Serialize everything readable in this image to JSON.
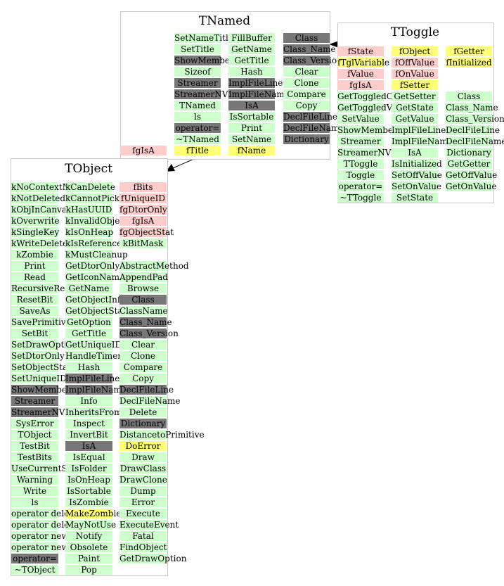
{
  "boxes": {
    "tnamed": {
      "title": "TNamed",
      "columns": [
        [
          {
            "t": "SetNameTitle",
            "c": "m"
          },
          {
            "t": "SetTitle",
            "c": "m"
          },
          {
            "t": "ShowMembers",
            "c": "g"
          },
          {
            "t": "Sizeof",
            "c": "m"
          },
          {
            "t": "Streamer",
            "c": "g"
          },
          {
            "t": "StreamerNVirtual",
            "c": "g"
          },
          {
            "t": "TNamed",
            "c": "m"
          },
          {
            "t": "ls",
            "c": "m"
          },
          {
            "t": "operator=",
            "c": "g"
          },
          {
            "t": "~TNamed",
            "c": "m"
          },
          {
            "t": "fTitle",
            "c": "y"
          }
        ],
        [
          {
            "t": "FillBuffer",
            "c": "m"
          },
          {
            "t": "GetName",
            "c": "m"
          },
          {
            "t": "GetTitle",
            "c": "m"
          },
          {
            "t": "Hash",
            "c": "m"
          },
          {
            "t": "ImplFileLine",
            "c": "g"
          },
          {
            "t": "ImplFileName",
            "c": "g"
          },
          {
            "t": "IsA",
            "c": "g"
          },
          {
            "t": "IsSortable",
            "c": "m"
          },
          {
            "t": "Print",
            "c": "m"
          },
          {
            "t": "SetName",
            "c": "m"
          },
          {
            "t": "fName",
            "c": "y"
          }
        ],
        [
          {
            "t": "Class",
            "c": "g"
          },
          {
            "t": "Class_Name",
            "c": "g"
          },
          {
            "t": "Class_Version",
            "c": "g"
          },
          {
            "t": "Clear",
            "c": "m"
          },
          {
            "t": "Clone",
            "c": "m"
          },
          {
            "t": "Compare",
            "c": "m"
          },
          {
            "t": "Copy",
            "c": "m"
          },
          {
            "t": "DeclFileLine",
            "c": "g"
          },
          {
            "t": "DeclFileName",
            "c": "g"
          },
          {
            "t": "Dictionary",
            "c": "g"
          }
        ]
      ],
      "extra": {
        "t": "fgIsA",
        "c": "d"
      }
    },
    "ttoggle": {
      "title": "TToggle",
      "columns": [
        [
          {
            "t": "fState",
            "c": "d"
          },
          {
            "t": "fTglVariable",
            "c": "y"
          },
          {
            "t": "fValue",
            "c": "d"
          },
          {
            "t": "fgIsA",
            "c": "d"
          },
          {
            "t": "GetToggledObject",
            "c": "m"
          },
          {
            "t": "GetToggledVariable",
            "c": "m"
          },
          {
            "t": "SetValue",
            "c": "m"
          },
          {
            "t": "ShowMembers",
            "c": "m"
          },
          {
            "t": "Streamer",
            "c": "m"
          },
          {
            "t": "StreamerNVirtual",
            "c": "m"
          },
          {
            "t": "TToggle",
            "c": "m"
          },
          {
            "t": "Toggle",
            "c": "m"
          },
          {
            "t": "operator=",
            "c": "m"
          },
          {
            "t": "~TToggle",
            "c": "m"
          }
        ],
        [
          {
            "t": "fObject",
            "c": "y"
          },
          {
            "t": "fOffValue",
            "c": "d"
          },
          {
            "t": "fOnValue",
            "c": "d"
          },
          {
            "t": "fSetter",
            "c": "y"
          },
          {
            "t": "GetSetter",
            "c": "m"
          },
          {
            "t": "GetState",
            "c": "m"
          },
          {
            "t": "GetValue",
            "c": "m"
          },
          {
            "t": "ImplFileLine",
            "c": "m"
          },
          {
            "t": "ImplFileName",
            "c": "m"
          },
          {
            "t": "IsA",
            "c": "m"
          },
          {
            "t": "IsInitialized",
            "c": "m"
          },
          {
            "t": "SetOffValue",
            "c": "m"
          },
          {
            "t": "SetOnValue",
            "c": "m"
          },
          {
            "t": "SetState",
            "c": "m"
          }
        ],
        [
          {
            "t": "fGetter",
            "c": "y"
          },
          {
            "t": "fInitialized",
            "c": "y"
          },
          {
            "t": "",
            "c": "w"
          },
          {
            "t": "",
            "c": "w"
          },
          {
            "t": "Class",
            "c": "m"
          },
          {
            "t": "Class_Name",
            "c": "m"
          },
          {
            "t": "Class_Version",
            "c": "m"
          },
          {
            "t": "DeclFileLine",
            "c": "m"
          },
          {
            "t": "DeclFileName",
            "c": "m"
          },
          {
            "t": "Dictionary",
            "c": "m"
          },
          {
            "t": "GetGetter",
            "c": "m"
          },
          {
            "t": "GetOffValue",
            "c": "m"
          },
          {
            "t": "GetOnValue",
            "c": "m"
          }
        ]
      ]
    },
    "tobject": {
      "title": "TObject",
      "columns": [
        [
          {
            "t": "kNoContextMenu",
            "c": "m"
          },
          {
            "t": "kNotDeleted",
            "c": "m"
          },
          {
            "t": "kObjInCanvas",
            "c": "m"
          },
          {
            "t": "kOverwrite",
            "c": "m"
          },
          {
            "t": "kSingleKey",
            "c": "m"
          },
          {
            "t": "kWriteDelete",
            "c": "m"
          },
          {
            "t": "kZombie",
            "c": "m"
          },
          {
            "t": "Print",
            "c": "m"
          },
          {
            "t": "Read",
            "c": "m"
          },
          {
            "t": "RecursiveRemove",
            "c": "m"
          },
          {
            "t": "ResetBit",
            "c": "m"
          },
          {
            "t": "SaveAs",
            "c": "m"
          },
          {
            "t": "SavePrimitive",
            "c": "m"
          },
          {
            "t": "SetBit",
            "c": "m"
          },
          {
            "t": "SetDrawOption",
            "c": "m"
          },
          {
            "t": "SetDtorOnly",
            "c": "m"
          },
          {
            "t": "SetObjectStat",
            "c": "m"
          },
          {
            "t": "SetUniqueID",
            "c": "m"
          },
          {
            "t": "ShowMembers",
            "c": "g"
          },
          {
            "t": "Streamer",
            "c": "g"
          },
          {
            "t": "StreamerNVirtual",
            "c": "g"
          },
          {
            "t": "SysError",
            "c": "m"
          },
          {
            "t": "TObject",
            "c": "m"
          },
          {
            "t": "TestBit",
            "c": "m"
          },
          {
            "t": "TestBits",
            "c": "m"
          },
          {
            "t": "UseCurrentStyle",
            "c": "m"
          },
          {
            "t": "Warning",
            "c": "m"
          },
          {
            "t": "Write",
            "c": "m"
          },
          {
            "t": "ls",
            "c": "m"
          },
          {
            "t": "operator delete",
            "c": "m"
          },
          {
            "t": "operator delete[]",
            "c": "m"
          },
          {
            "t": "operator new",
            "c": "m"
          },
          {
            "t": "operator new[]",
            "c": "m"
          },
          {
            "t": "operator=",
            "c": "g"
          },
          {
            "t": "~TObject",
            "c": "m"
          }
        ],
        [
          {
            "t": "kCanDelete",
            "c": "m"
          },
          {
            "t": "kCannotPick",
            "c": "m"
          },
          {
            "t": "kHasUUID",
            "c": "m"
          },
          {
            "t": "kInvalidObject",
            "c": "m"
          },
          {
            "t": "kIsOnHeap",
            "c": "m"
          },
          {
            "t": "kIsReferenced",
            "c": "m"
          },
          {
            "t": "kMustCleanup",
            "c": "m"
          },
          {
            "t": "GetDtorOnly",
            "c": "m"
          },
          {
            "t": "GetIconName",
            "c": "m"
          },
          {
            "t": "GetName",
            "c": "m"
          },
          {
            "t": "GetObjectInfo",
            "c": "m"
          },
          {
            "t": "GetObjectStat",
            "c": "m"
          },
          {
            "t": "GetOption",
            "c": "m"
          },
          {
            "t": "GetTitle",
            "c": "m"
          },
          {
            "t": "GetUniqueID",
            "c": "m"
          },
          {
            "t": "HandleTimer",
            "c": "m"
          },
          {
            "t": "Hash",
            "c": "m"
          },
          {
            "t": "ImplFileLine",
            "c": "g"
          },
          {
            "t": "ImplFileName",
            "c": "g"
          },
          {
            "t": "Info",
            "c": "m"
          },
          {
            "t": "InheritsFrom",
            "c": "m"
          },
          {
            "t": "Inspect",
            "c": "m"
          },
          {
            "t": "InvertBit",
            "c": "m"
          },
          {
            "t": "IsA",
            "c": "g"
          },
          {
            "t": "IsEqual",
            "c": "m"
          },
          {
            "t": "IsFolder",
            "c": "m"
          },
          {
            "t": "IsOnHeap",
            "c": "m"
          },
          {
            "t": "IsSortable",
            "c": "m"
          },
          {
            "t": "IsZombie",
            "c": "m"
          },
          {
            "t": "MakeZombie",
            "c": "y"
          },
          {
            "t": "MayNotUse",
            "c": "m"
          },
          {
            "t": "Notify",
            "c": "m"
          },
          {
            "t": "Obsolete",
            "c": "m"
          },
          {
            "t": "Paint",
            "c": "m"
          },
          {
            "t": "Pop",
            "c": "m"
          }
        ],
        [
          {
            "t": "fBits",
            "c": "d"
          },
          {
            "t": "fUniqueID",
            "c": "d"
          },
          {
            "t": "fgDtorOnly",
            "c": "d"
          },
          {
            "t": "fgIsA",
            "c": "d"
          },
          {
            "t": "fgObjectStat",
            "c": "d"
          },
          {
            "t": "kBitMask",
            "c": "m"
          },
          {
            "t": "",
            "c": "w"
          },
          {
            "t": "AbstractMethod",
            "c": "m"
          },
          {
            "t": "AppendPad",
            "c": "m"
          },
          {
            "t": "Browse",
            "c": "m"
          },
          {
            "t": "Class",
            "c": "g"
          },
          {
            "t": "ClassName",
            "c": "m"
          },
          {
            "t": "Class_Name",
            "c": "g"
          },
          {
            "t": "Class_Version",
            "c": "g"
          },
          {
            "t": "Clear",
            "c": "m"
          },
          {
            "t": "Clone",
            "c": "m"
          },
          {
            "t": "Compare",
            "c": "m"
          },
          {
            "t": "Copy",
            "c": "m"
          },
          {
            "t": "DeclFileLine",
            "c": "g"
          },
          {
            "t": "DeclFileName",
            "c": "m"
          },
          {
            "t": "Delete",
            "c": "m"
          },
          {
            "t": "Dictionary",
            "c": "g"
          },
          {
            "t": "DistancetoPrimitive",
            "c": "m"
          },
          {
            "t": "DoError",
            "c": "y"
          },
          {
            "t": "Draw",
            "c": "m"
          },
          {
            "t": "DrawClass",
            "c": "m"
          },
          {
            "t": "DrawClone",
            "c": "m"
          },
          {
            "t": "Dump",
            "c": "m"
          },
          {
            "t": "Error",
            "c": "m"
          },
          {
            "t": "Execute",
            "c": "m"
          },
          {
            "t": "ExecuteEvent",
            "c": "m"
          },
          {
            "t": "Fatal",
            "c": "m"
          },
          {
            "t": "FindObject",
            "c": "m"
          },
          {
            "t": "GetDrawOption",
            "c": "m"
          }
        ]
      ]
    }
  }
}
